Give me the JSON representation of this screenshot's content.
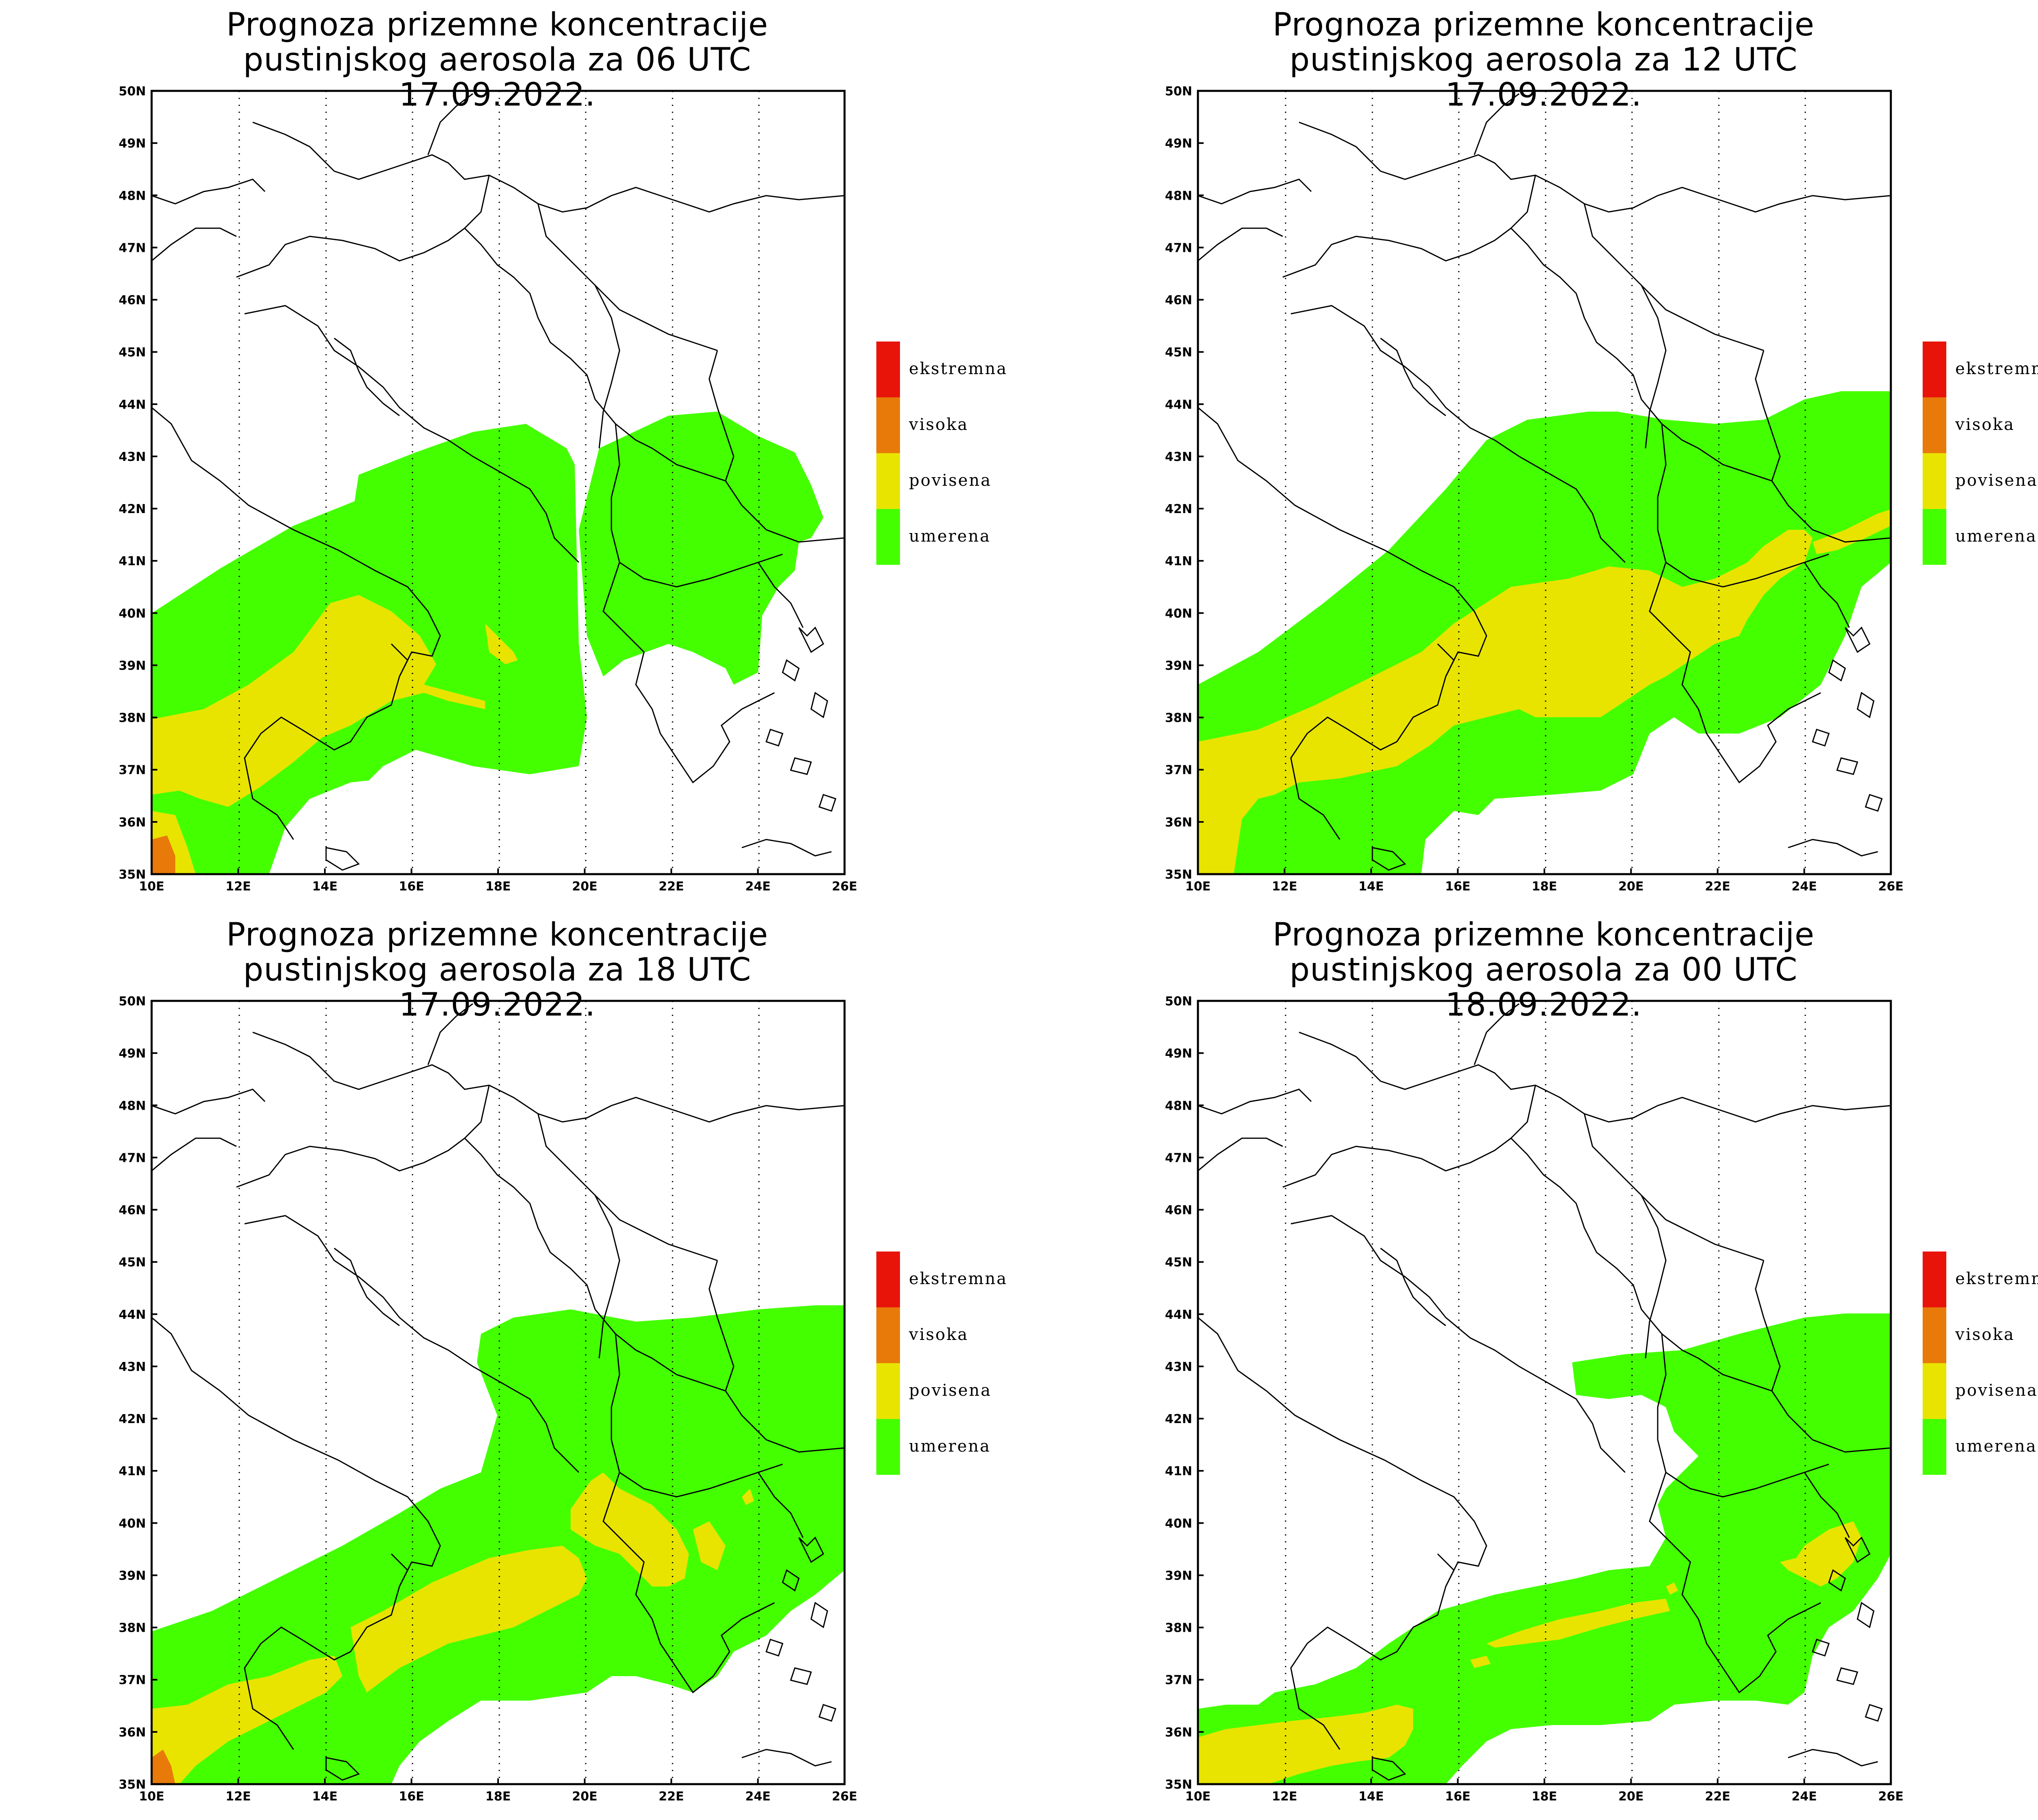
{
  "title_line1": "Prognoza prizemne koncentracije",
  "panels": [
    {
      "title_line2": "pustinjskog aerosola za 06 UTC 17.09.2022."
    },
    {
      "title_line2": "pustinjskog aerosola za 12 UTC 17.09.2022."
    },
    {
      "title_line2": "pustinjskog aerosola za 18 UTC 17.09.2022."
    },
    {
      "title_line2": "pustinjskog aerosola za 00 UTC 18.09.2022."
    }
  ],
  "lat_ticks": [
    "50N",
    "49N",
    "48N",
    "47N",
    "46N",
    "45N",
    "44N",
    "43N",
    "42N",
    "41N",
    "40N",
    "39N",
    "38N",
    "37N",
    "36N",
    "35N"
  ],
  "lon_ticks": [
    "10E",
    "12E",
    "14E",
    "16E",
    "18E",
    "20E",
    "22E",
    "24E",
    "26E"
  ],
  "legend": [
    {
      "label": "ekstremna",
      "color": "#e8140a"
    },
    {
      "label": "visoka",
      "color": "#e87a0a"
    },
    {
      "label": "povisena",
      "color": "#e8e400"
    },
    {
      "label": "umerena",
      "color": "#44ff00"
    }
  ]
}
